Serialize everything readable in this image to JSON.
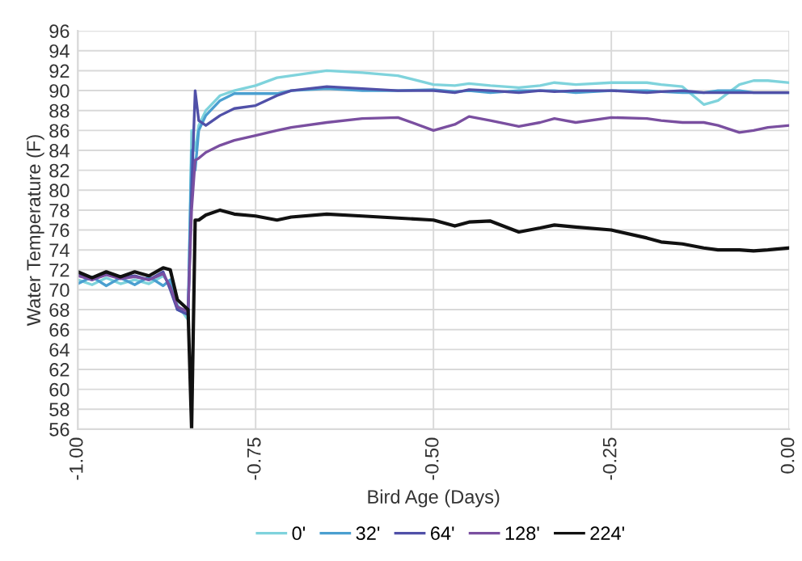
{
  "chart_data": {
    "type": "line",
    "xlabel": "Bird Age (Days)",
    "ylabel": "Water Temperature (F)",
    "xlim": [
      -1.0,
      0.0
    ],
    "xticks": [
      {
        "value": -1.0,
        "label": "-1.00"
      },
      {
        "value": -0.75,
        "label": "-0.75"
      },
      {
        "value": -0.5,
        "label": "-0.50"
      },
      {
        "value": -0.25,
        "label": "-0.25"
      },
      {
        "value": 0.0,
        "label": "0.00"
      }
    ],
    "ylim": [
      56,
      96
    ],
    "yticks": [
      56,
      58,
      60,
      62,
      64,
      66,
      68,
      70,
      72,
      74,
      76,
      78,
      80,
      82,
      84,
      86,
      88,
      90,
      92,
      94,
      96
    ],
    "grid": true,
    "legend": "bottom",
    "marker": "none",
    "line_style": "solid",
    "x": [
      -1.0,
      -0.98,
      -0.96,
      -0.94,
      -0.92,
      -0.9,
      -0.88,
      -0.87,
      -0.86,
      -0.845,
      -0.84,
      -0.835,
      -0.83,
      -0.82,
      -0.8,
      -0.78,
      -0.75,
      -0.72,
      -0.7,
      -0.65,
      -0.6,
      -0.55,
      -0.5,
      -0.47,
      -0.45,
      -0.42,
      -0.38,
      -0.35,
      -0.33,
      -0.3,
      -0.25,
      -0.2,
      -0.18,
      -0.15,
      -0.12,
      -0.1,
      -0.07,
      -0.05,
      -0.03,
      0.0
    ],
    "series": [
      {
        "name": "0'",
        "color": "#7fd3dc",
        "values": [
          71.0,
          70.5,
          71.2,
          70.6,
          71.0,
          70.6,
          71.4,
          70.5,
          68.5,
          67.0,
          86.0,
          84.0,
          86.5,
          88.0,
          89.5,
          90.0,
          90.5,
          91.3,
          91.5,
          92.0,
          91.8,
          91.5,
          90.6,
          90.5,
          90.7,
          90.5,
          90.3,
          90.5,
          90.8,
          90.6,
          90.8,
          90.8,
          90.6,
          90.4,
          88.6,
          89.0,
          90.6,
          91.0,
          91.0,
          90.8
        ]
      },
      {
        "name": "32'",
        "color": "#4a9fd0",
        "values": [
          70.6,
          71.3,
          70.4,
          71.2,
          70.5,
          71.3,
          70.4,
          71.0,
          68.0,
          67.5,
          84.0,
          82.0,
          86.0,
          87.5,
          89.0,
          89.7,
          89.7,
          89.7,
          90.0,
          90.2,
          90.0,
          90.0,
          90.1,
          89.9,
          90.0,
          89.8,
          90.0,
          90.0,
          90.0,
          89.8,
          90.0,
          90.0,
          89.9,
          89.8,
          89.8,
          90.0,
          90.0,
          89.8,
          89.8,
          89.8
        ]
      },
      {
        "name": "64'",
        "color": "#5050a8",
        "values": [
          71.5,
          71.0,
          71.6,
          71.2,
          71.4,
          71.0,
          71.8,
          70.0,
          68.0,
          67.5,
          80.0,
          90.0,
          87.0,
          86.5,
          87.5,
          88.2,
          88.5,
          89.5,
          90.0,
          90.4,
          90.2,
          90.0,
          90.0,
          89.8,
          90.1,
          90.0,
          89.8,
          90.0,
          89.9,
          90.0,
          90.0,
          89.8,
          89.9,
          90.0,
          89.8,
          89.8,
          89.8,
          89.8,
          89.8,
          89.8
        ]
      },
      {
        "name": "128'",
        "color": "#7a4fa0",
        "values": [
          71.4,
          71.0,
          71.5,
          71.1,
          71.3,
          71.0,
          71.6,
          70.3,
          68.3,
          67.8,
          78.0,
          83.0,
          83.2,
          83.8,
          84.5,
          85.0,
          85.5,
          86.0,
          86.3,
          86.8,
          87.2,
          87.3,
          86.0,
          86.6,
          87.4,
          87.0,
          86.4,
          86.8,
          87.2,
          86.8,
          87.3,
          87.2,
          87.0,
          86.8,
          86.8,
          86.5,
          85.8,
          86.0,
          86.3,
          86.5
        ]
      },
      {
        "name": "224'",
        "color": "#111111",
        "values": [
          71.8,
          71.2,
          71.8,
          71.3,
          71.8,
          71.4,
          72.2,
          72.0,
          69.0,
          68.0,
          56.0,
          77.0,
          77.0,
          77.5,
          78.0,
          77.6,
          77.4,
          77.0,
          77.3,
          77.6,
          77.4,
          77.2,
          77.0,
          76.4,
          76.8,
          76.9,
          75.8,
          76.2,
          76.5,
          76.3,
          76.0,
          75.2,
          74.8,
          74.6,
          74.2,
          74.0,
          74.0,
          73.9,
          74.0,
          74.2
        ]
      }
    ]
  }
}
